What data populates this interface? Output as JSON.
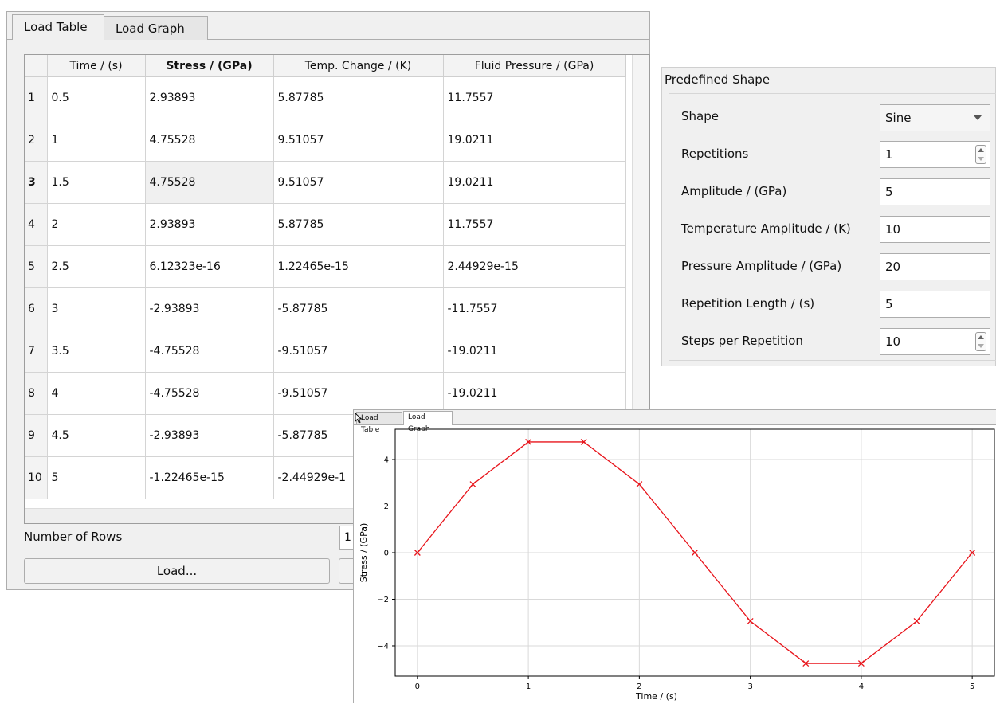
{
  "main_window": {
    "tabs": [
      {
        "label": "Load Table",
        "active": true
      },
      {
        "label": "Load Graph",
        "active": false
      }
    ],
    "table": {
      "columns": [
        "Time / (s)",
        "Stress / (GPa)",
        "Temp. Change / (K)",
        "Fluid Pressure / (GPa)"
      ],
      "bold_column": "Stress / (GPa)",
      "selected_row": 3,
      "rows": [
        {
          "n": "1",
          "time": "0.5",
          "stress": "2.93893",
          "temp": "5.87785",
          "pressure": "11.7557"
        },
        {
          "n": "2",
          "time": "1",
          "stress": "4.75528",
          "temp": "9.51057",
          "pressure": "19.0211"
        },
        {
          "n": "3",
          "time": "1.5",
          "stress": "4.75528",
          "temp": "9.51057",
          "pressure": "19.0211"
        },
        {
          "n": "4",
          "time": "2",
          "stress": "2.93893",
          "temp": "5.87785",
          "pressure": "11.7557"
        },
        {
          "n": "5",
          "time": "2.5",
          "stress": "6.12323e-16",
          "temp": "1.22465e-15",
          "pressure": "2.44929e-15"
        },
        {
          "n": "6",
          "time": "3",
          "stress": "-2.93893",
          "temp": "-5.87785",
          "pressure": "-11.7557"
        },
        {
          "n": "7",
          "time": "3.5",
          "stress": "-4.75528",
          "temp": "-9.51057",
          "pressure": "-19.0211"
        },
        {
          "n": "8",
          "time": "4",
          "stress": "-4.75528",
          "temp": "-9.51057",
          "pressure": "-19.0211"
        },
        {
          "n": "9",
          "time": "4.5",
          "stress": "-2.93893",
          "temp": "-5.87785",
          "pressure": ""
        },
        {
          "n": "10",
          "time": "5",
          "stress": "-1.22465e-15",
          "temp": "-2.44929e-1",
          "pressure": ""
        }
      ]
    },
    "rows_label": "Number of Rows",
    "rows_value": "1",
    "load_button": "Load...",
    "second_button": ""
  },
  "shape_panel": {
    "title": "Predefined Shape",
    "fields": {
      "shape": {
        "label": "Shape",
        "value": "Sine"
      },
      "repetitions": {
        "label": "Repetitions",
        "value": "1"
      },
      "amplitude": {
        "label": "Amplitude / (GPa)",
        "value": "5"
      },
      "temp_amplitude": {
        "label": "Temperature Amplitude / (K)",
        "value": "10"
      },
      "pressure_amplitude": {
        "label": "Pressure Amplitude / (GPa)",
        "value": "20"
      },
      "repetition_length": {
        "label": "Repetition Length / (s)",
        "value": "5"
      },
      "steps": {
        "label": "Steps per Repetition",
        "value": "10"
      }
    }
  },
  "graph_window": {
    "tabs": [
      {
        "label": "Load Table",
        "active": false
      },
      {
        "label": "Load Graph",
        "active": true
      }
    ]
  },
  "chart_data": {
    "type": "line",
    "xlabel": "Time / (s)",
    "ylabel": "Stress / (GPa)",
    "xlim": [
      -0.2,
      5.2
    ],
    "ylim": [
      -5.3,
      5.3
    ],
    "xticks": [
      0,
      1,
      2,
      3,
      4,
      5
    ],
    "yticks": [
      -4,
      -2,
      0,
      2,
      4
    ],
    "grid": true,
    "series": [
      {
        "color": "#e8141b",
        "marker": "x",
        "x": [
          0,
          0.5,
          1,
          1.5,
          2,
          2.5,
          3,
          3.5,
          4,
          4.5,
          5
        ],
        "y": [
          0,
          2.93893,
          4.75528,
          4.75528,
          2.93893,
          0,
          -2.93893,
          -4.75528,
          -4.75528,
          -2.93893,
          0
        ]
      }
    ]
  }
}
